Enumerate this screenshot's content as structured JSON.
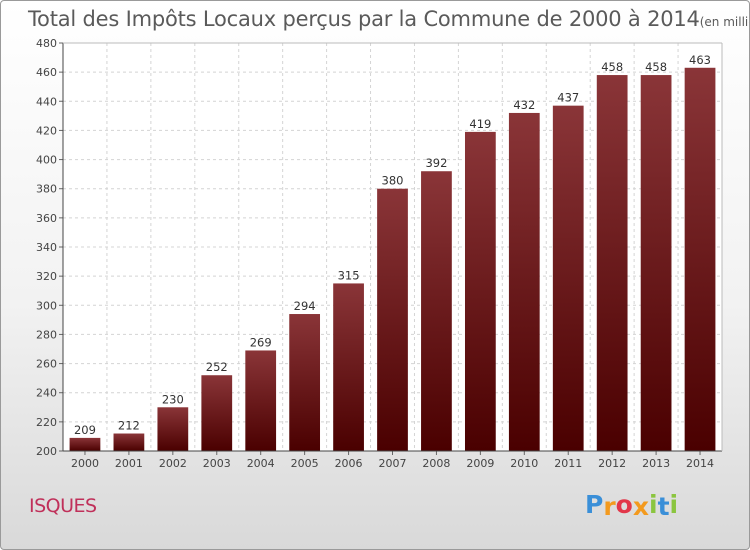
{
  "title": "Total des Impôts Locaux perçus par la Commune de 2000 à 2014",
  "unit_note": "(en milliers d'€)",
  "commune": "ISQUES",
  "logo": {
    "letters": [
      "P",
      "r",
      "o",
      "x",
      "i",
      "t",
      "i"
    ],
    "colors": [
      "#3a8fd8",
      "#f39a1e",
      "#e2374a",
      "#f39a1e",
      "#8bc53f",
      "#3a8fd8",
      "#8bc53f"
    ]
  },
  "colors": {
    "bar_top": "#8a3538",
    "bar_bottom": "#4a0000",
    "title": "#5a5a5a",
    "commune": "#c0305a"
  },
  "chart_data": {
    "type": "bar",
    "title": "Total des Impôts Locaux perçus par la Commune de 2000 à 2014",
    "xlabel": "",
    "ylabel": "",
    "ylim": [
      200,
      480
    ],
    "yticks": [
      200,
      220,
      240,
      260,
      280,
      300,
      320,
      340,
      360,
      380,
      400,
      420,
      440,
      460,
      480
    ],
    "grid": true,
    "categories": [
      "2000",
      "2001",
      "2002",
      "2003",
      "2004",
      "2005",
      "2006",
      "2007",
      "2008",
      "2009",
      "2010",
      "2011",
      "2012",
      "2013",
      "2014"
    ],
    "values": [
      209,
      212,
      230,
      252,
      269,
      294,
      315,
      380,
      392,
      419,
      432,
      437,
      458,
      458,
      463
    ]
  }
}
